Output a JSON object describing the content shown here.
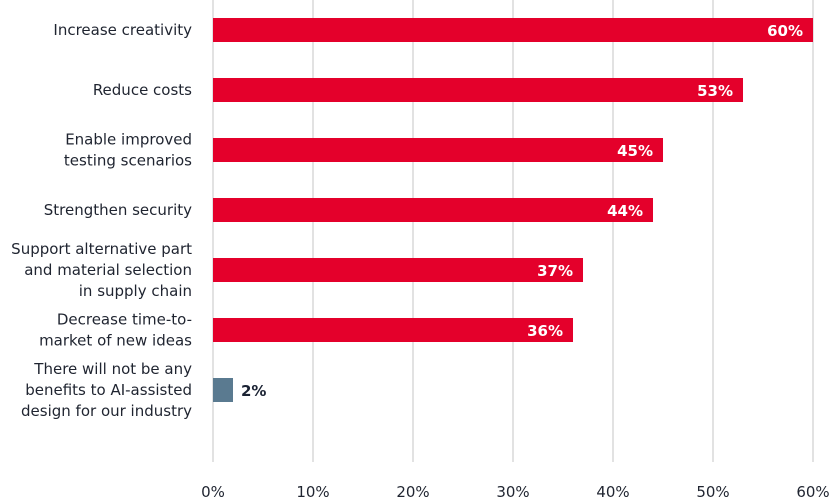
{
  "chart_data": {
    "type": "bar",
    "orientation": "horizontal",
    "categories": [
      [
        "Increase creativity"
      ],
      [
        "Reduce costs"
      ],
      [
        "Enable improved",
        "testing scenarios"
      ],
      [
        "Strengthen security"
      ],
      [
        "Support alternative part",
        "and material selection",
        "in supply chain"
      ],
      [
        "Decrease time-to-",
        "market of new ideas"
      ],
      [
        "There will not be any",
        "benefits to AI-assisted",
        "design for our industry"
      ]
    ],
    "values": [
      60,
      53,
      45,
      44,
      37,
      36,
      2
    ],
    "value_labels": [
      "60%",
      "53%",
      "45%",
      "44%",
      "37%",
      "36%",
      "2%"
    ],
    "bar_colors": [
      "#e4002b",
      "#e4002b",
      "#e4002b",
      "#e4002b",
      "#e4002b",
      "#e4002b",
      "#5a7a90"
    ],
    "xlim": [
      0,
      60
    ],
    "x_ticks": [
      0,
      10,
      20,
      30,
      40,
      50,
      60
    ],
    "x_tick_labels": [
      "0%",
      "10%",
      "20%",
      "30%",
      "40%",
      "50%",
      "60%"
    ],
    "grid": "vertical",
    "legend": "none"
  }
}
